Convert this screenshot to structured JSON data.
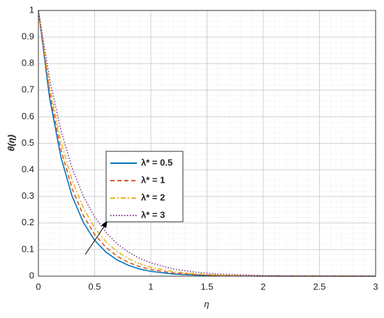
{
  "chart_data": {
    "type": "line",
    "x_label": "η",
    "y_label": "θ(η)",
    "x": [
      0,
      0.1,
      0.2,
      0.3,
      0.4,
      0.5,
      0.6,
      0.7,
      0.8,
      0.9,
      1,
      1.2,
      1.4,
      1.6,
      1.8,
      2,
      2.5,
      3
    ],
    "series": [
      {
        "name": "λ* = 0.5",
        "color": "#0072BD",
        "style": "solid",
        "values": [
          1,
          0.67,
          0.449,
          0.301,
          0.202,
          0.135,
          0.091,
          0.061,
          0.041,
          0.027,
          0.018,
          0.008,
          0.004,
          0.002,
          0.001,
          0,
          0,
          0
        ]
      },
      {
        "name": "λ* = 1",
        "color": "#D95319",
        "style": "dashed",
        "values": [
          1,
          0.691,
          0.477,
          0.33,
          0.228,
          0.157,
          0.109,
          0.075,
          0.052,
          0.036,
          0.025,
          0.012,
          0.006,
          0.003,
          0.001,
          0.001,
          0,
          0
        ]
      },
      {
        "name": "λ* = 2",
        "color": "#EDB120",
        "style": "dashdot",
        "values": [
          1,
          0.712,
          0.507,
          0.361,
          0.257,
          0.183,
          0.13,
          0.093,
          0.066,
          0.047,
          0.033,
          0.017,
          0.009,
          0.004,
          0.002,
          0.001,
          0,
          0
        ]
      },
      {
        "name": "λ* = 3",
        "color": "#7E2F8E",
        "style": "dotted",
        "values": [
          1,
          0.741,
          0.549,
          0.407,
          0.301,
          0.223,
          0.165,
          0.122,
          0.091,
          0.067,
          0.05,
          0.027,
          0.015,
          0.008,
          0.005,
          0.002,
          0.001,
          0
        ]
      }
    ],
    "xlim": [
      0,
      3
    ],
    "xticks": [
      0,
      0.5,
      1,
      1.5,
      2,
      2.5,
      3
    ],
    "ylim": [
      0,
      1
    ],
    "yticks": [
      0,
      0.1,
      0.2,
      0.3,
      0.4,
      0.5,
      0.6,
      0.7,
      0.8,
      0.9,
      1
    ],
    "grid": true,
    "minor_grid": true
  }
}
